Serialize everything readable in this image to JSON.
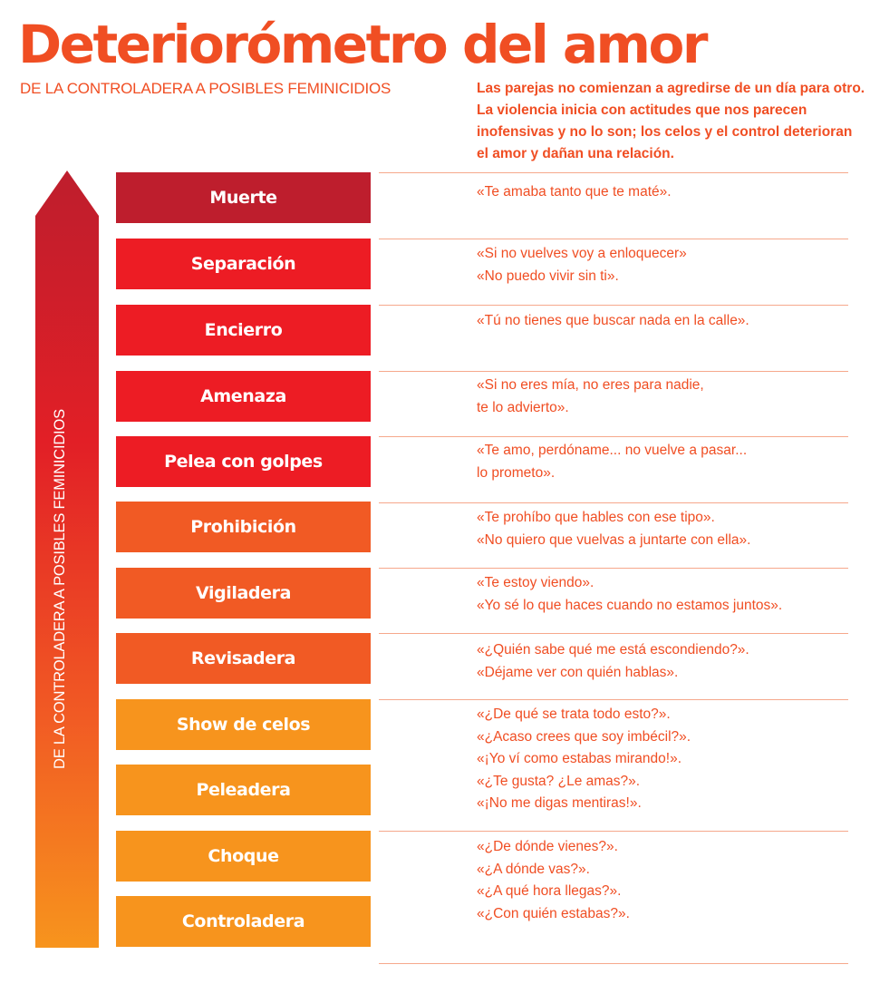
{
  "title": "Deteriorómetro del amor",
  "subtitle": "DE LA CONTROLADERA A POSIBLES FEMINICIDIOS",
  "intro": "Las parejas no comienzan a agredirse de un día para otro. La violencia inicia con actitudes que nos parecen inofensivas y no lo son; los celos y el control deterioran el amor y dañan una relación.",
  "arrow_label": "DE LA CONTROLADERA A POSIBLES FEMINICIDIOS",
  "colors": {
    "accent": "#f04e23",
    "dark_red": "#be1e2d",
    "red": "#ed1c24",
    "orange": "#f15a24",
    "amber": "#f7941d"
  },
  "stages": [
    {
      "label": "Muerte",
      "color": "#be1e2d"
    },
    {
      "label": "Separación",
      "color": "#ed1c24"
    },
    {
      "label": "Encierro",
      "color": "#ed1c24"
    },
    {
      "label": "Amenaza",
      "color": "#ed1c24"
    },
    {
      "label": "Pelea con golpes",
      "color": "#ed1c24"
    },
    {
      "label": "Prohibición",
      "color": "#f15a24"
    },
    {
      "label": "Vigiladera",
      "color": "#f15a24"
    },
    {
      "label": "Revisadera",
      "color": "#f15a24"
    },
    {
      "label": "Show de celos",
      "color": "#f7941d"
    },
    {
      "label": "Peleadera",
      "color": "#f7941d"
    },
    {
      "label": "Choque",
      "color": "#f7941d"
    },
    {
      "label": "Controladera",
      "color": "#f7941d"
    }
  ],
  "quotes": [
    {
      "lines": [
        "«Te amaba tanto que te maté»."
      ]
    },
    {
      "lines": [
        "«Si no vuelves voy a enloquecer»",
        "«No puedo vivir sin ti»."
      ]
    },
    {
      "lines": [
        "«Tú no tienes que buscar nada en la calle»."
      ]
    },
    {
      "lines": [
        "«Si no eres mía, no eres para nadie,",
        "te lo advierto»."
      ]
    },
    {
      "lines": [
        "«Te amo, perdóname... no vuelve a pasar...",
        "lo prometo»."
      ]
    },
    {
      "lines": [
        "«Te prohíbo que hables con ese tipo».",
        "«No quiero que vuelvas a juntarte con ella»."
      ]
    },
    {
      "lines": [
        "«Te estoy viendo».",
        "«Yo sé lo que haces cuando no estamos juntos»."
      ]
    },
    {
      "lines": [
        "«¿Quién sabe qué me está escondiendo?».",
        "«Déjame ver con quién hablas»."
      ]
    },
    {
      "lines": [
        "«¿De qué se trata todo esto?».",
        "«¿Acaso crees que soy imbécil?».",
        "«¡Yo ví como estabas mirando!».",
        "«¿Te gusta? ¿Le amas?».",
        "«¡No me digas mentiras!»."
      ]
    },
    {
      "lines": [
        "«¿De dónde vienes?».",
        "«¿A dónde vas?».",
        "«¿A qué hora llegas?».",
        "«¿Con quién estabas?»."
      ]
    }
  ]
}
